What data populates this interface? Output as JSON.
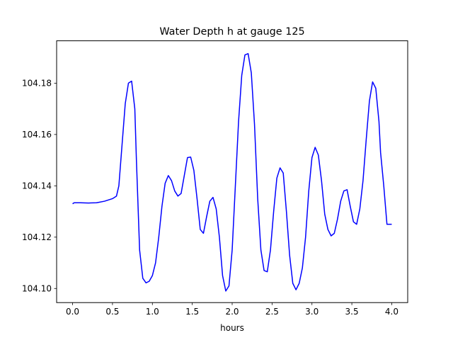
{
  "chart_data": {
    "type": "line",
    "title": "Water Depth h at gauge 125",
    "xlabel": "hours",
    "ylabel": "",
    "xlim": [
      -0.2,
      4.2
    ],
    "ylim": [
      104.0945,
      104.1965
    ],
    "x_ticks": [
      0.0,
      0.5,
      1.0,
      1.5,
      2.0,
      2.5,
      3.0,
      3.5,
      4.0
    ],
    "x_tick_labels": [
      "0.0",
      "0.5",
      "1.0",
      "1.5",
      "2.0",
      "2.5",
      "3.0",
      "3.5",
      "4.0"
    ],
    "y_ticks": [
      104.1,
      104.12,
      104.14,
      104.16,
      104.18
    ],
    "y_tick_labels": [
      "104.10",
      "104.12",
      "104.14",
      "104.16",
      "104.18"
    ],
    "grid": false,
    "series": [
      {
        "color": "#0000ff",
        "x": [
          0.0,
          0.02,
          0.1,
          0.2,
          0.3,
          0.4,
          0.5,
          0.55,
          0.58,
          0.62,
          0.66,
          0.7,
          0.74,
          0.78,
          0.8,
          0.84,
          0.88,
          0.92,
          0.96,
          1.0,
          1.04,
          1.08,
          1.12,
          1.16,
          1.2,
          1.24,
          1.28,
          1.32,
          1.36,
          1.4,
          1.44,
          1.48,
          1.52,
          1.56,
          1.6,
          1.64,
          1.68,
          1.72,
          1.76,
          1.8,
          1.84,
          1.88,
          1.92,
          1.96,
          2.0,
          2.04,
          2.08,
          2.12,
          2.16,
          2.2,
          2.24,
          2.28,
          2.32,
          2.36,
          2.4,
          2.44,
          2.48,
          2.52,
          2.56,
          2.6,
          2.64,
          2.68,
          2.72,
          2.76,
          2.8,
          2.84,
          2.88,
          2.92,
          2.96,
          3.0,
          3.04,
          3.08,
          3.12,
          3.16,
          3.2,
          3.24,
          3.28,
          3.32,
          3.36,
          3.4,
          3.44,
          3.48,
          3.52,
          3.56,
          3.6,
          3.64,
          3.68,
          3.72,
          3.76,
          3.8,
          3.84,
          3.86,
          3.9,
          3.94,
          3.98,
          4.0
        ],
        "y": [
          104.133,
          104.1334,
          104.1334,
          104.1333,
          104.1334,
          104.134,
          104.135,
          104.136,
          104.14,
          104.156,
          104.172,
          104.18,
          104.1808,
          104.17,
          104.15,
          104.115,
          104.104,
          104.1022,
          104.1028,
          104.105,
          104.11,
          104.12,
          104.132,
          104.141,
          104.144,
          104.142,
          104.138,
          104.136,
          104.137,
          104.144,
          104.151,
          104.1512,
          104.146,
          104.135,
          104.123,
          104.1215,
          104.128,
          104.134,
          104.1355,
          104.131,
          104.12,
          104.105,
          104.099,
          104.101,
          104.115,
          104.14,
          104.165,
          104.183,
          104.191,
          104.1915,
          104.184,
          104.164,
          104.135,
          104.115,
          104.107,
          104.1065,
          104.115,
          104.13,
          104.143,
          104.147,
          104.145,
          104.13,
          104.113,
          104.102,
          104.0995,
          104.102,
          104.108,
          104.12,
          104.138,
          104.151,
          104.155,
          104.152,
          104.142,
          104.129,
          104.123,
          104.1205,
          104.1215,
          104.127,
          104.134,
          104.138,
          104.1385,
          104.132,
          104.126,
          104.125,
          104.131,
          104.142,
          104.158,
          104.173,
          104.1805,
          104.178,
          104.165,
          104.153,
          104.14,
          104.125,
          104.125,
          104.125
        ]
      }
    ]
  }
}
